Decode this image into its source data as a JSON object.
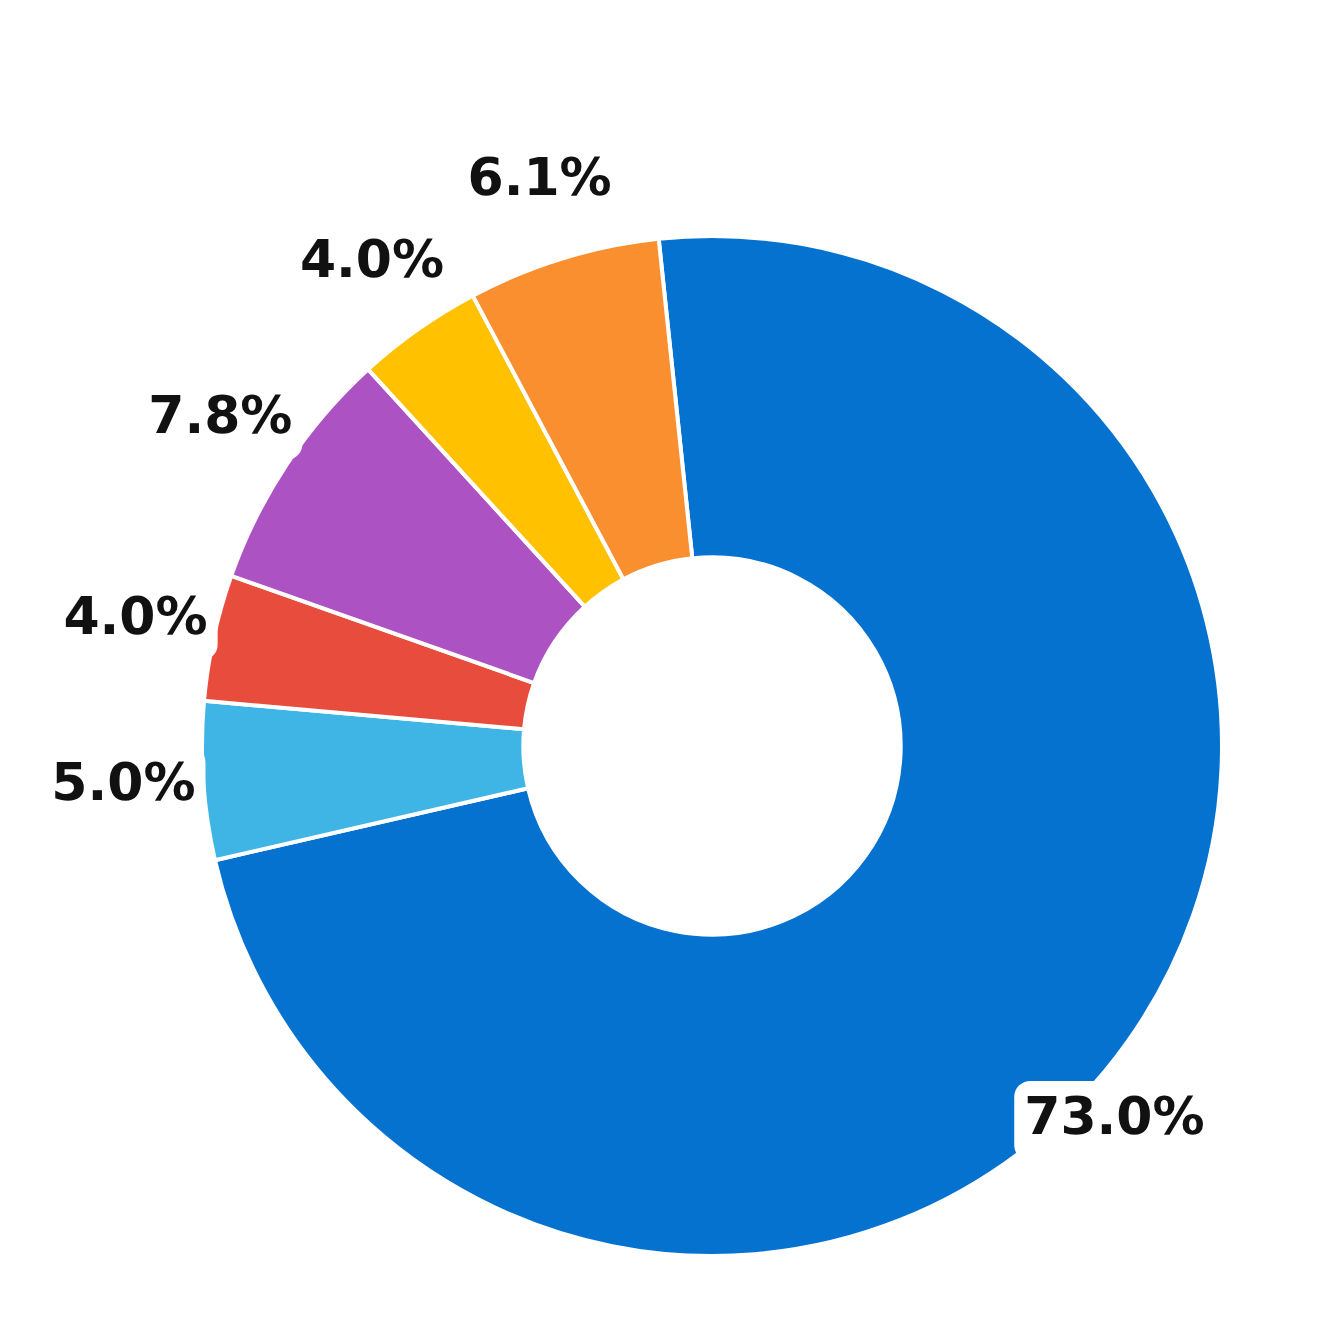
{
  "chart_data": {
    "type": "donut",
    "categories": [
      null,
      null,
      null,
      null,
      null,
      null
    ],
    "values": [
      73.0,
      5.0,
      4.0,
      7.8,
      4.0,
      6.1
    ],
    "value_labels": [
      "73.0%",
      "5.0%",
      "4.0%",
      "7.8%",
      "4.0%",
      "6.1%"
    ],
    "colors": [
      "#0672cf",
      "#3fb5e5",
      "#e84c3d",
      "#ad52c2",
      "#ffc100",
      "#f98f2f"
    ],
    "legend": false
  }
}
